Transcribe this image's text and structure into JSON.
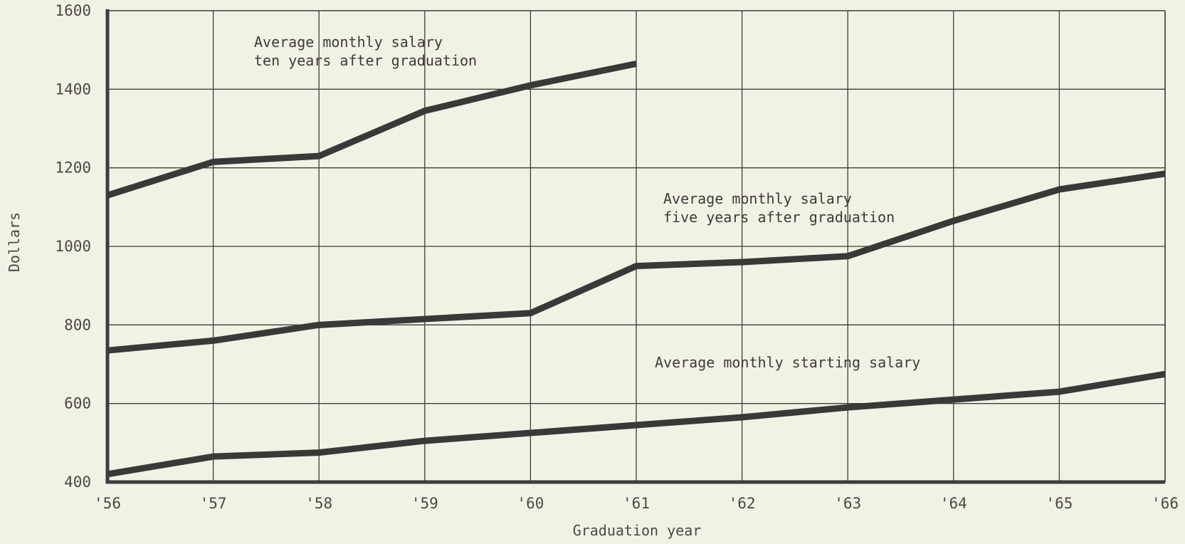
{
  "chart_data": {
    "type": "line",
    "title": "",
    "xlabel": "Graduation year",
    "ylabel": "Dollars",
    "x_categories": [
      "'56",
      "'57",
      "'58",
      "'59",
      "'60",
      "'61",
      "'62",
      "'63",
      "'64",
      "'65",
      "'66"
    ],
    "y_ticks": [
      400,
      600,
      800,
      1000,
      1200,
      1400,
      1600
    ],
    "ylim": [
      400,
      1600
    ],
    "grid": true,
    "series": [
      {
        "name": "Average monthly salary ten years after graduation",
        "label_lines": [
          "Average monthly salary",
          "ten years after graduation"
        ],
        "x": [
          "'56",
          "'57",
          "'58",
          "'59",
          "'60",
          "'61"
        ],
        "values": [
          1130,
          1215,
          1230,
          1345,
          1410,
          1465
        ]
      },
      {
        "name": "Average monthly salary five years after graduation",
        "label_lines": [
          "Average monthly salary",
          "five years after graduation"
        ],
        "x": [
          "'56",
          "'57",
          "'58",
          "'59",
          "'60",
          "'61",
          "'62",
          "'63",
          "'64",
          "'65",
          "'66"
        ],
        "values": [
          735,
          760,
          800,
          815,
          830,
          950,
          960,
          975,
          1065,
          1145,
          1185
        ]
      },
      {
        "name": "Average monthly starting salary",
        "label_lines": [
          "Average monthly starting salary"
        ],
        "x": [
          "'56",
          "'57",
          "'58",
          "'59",
          "'60",
          "'61",
          "'62",
          "'63",
          "'64",
          "'65",
          "'66"
        ],
        "values": [
          420,
          465,
          475,
          505,
          525,
          545,
          565,
          590,
          610,
          630,
          675
        ]
      }
    ],
    "colors": {
      "line": "#3b3838",
      "grid": "#3e3c3c",
      "background": "#f2f2e4"
    }
  }
}
